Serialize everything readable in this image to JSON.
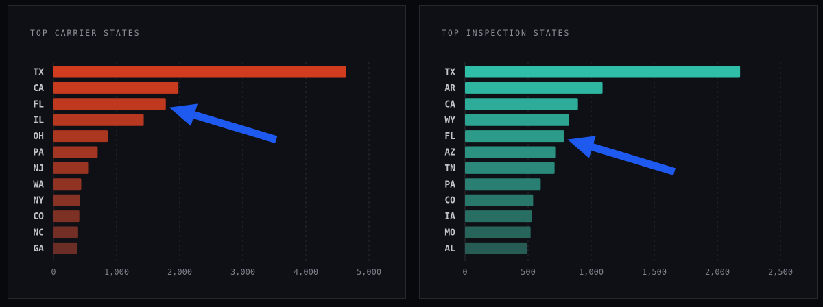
{
  "colors": {
    "carrier_top": "#d23c1e",
    "carrier_bottom": "#6a2e26",
    "inspection_top": "#2fbfa8",
    "inspection_bottom": "#265c53",
    "grid": "#2a2d34",
    "tick_text": "#7d818b",
    "label_text": "#c2c5cc",
    "arrow": "#1f5af0"
  },
  "chart_data": [
    {
      "type": "bar",
      "orientation": "horizontal",
      "title": "TOP CARRIER STATES",
      "categories": [
        "TX",
        "CA",
        "FL",
        "IL",
        "OH",
        "PA",
        "NJ",
        "WA",
        "NY",
        "CO",
        "NC",
        "GA"
      ],
      "values": [
        4640,
        1980,
        1780,
        1430,
        860,
        700,
        560,
        440,
        420,
        410,
        390,
        380
      ],
      "xlim": [
        0,
        5000
      ],
      "xticks": [
        0,
        1000,
        2000,
        3000,
        4000,
        5000
      ],
      "xtick_labels": [
        "0",
        "1,000",
        "2,000",
        "3,000",
        "4,000",
        "5,000"
      ],
      "grid": true,
      "annotation": {
        "type": "arrow",
        "points_to": "FL"
      }
    },
    {
      "type": "bar",
      "orientation": "horizontal",
      "title": "TOP INSPECTION STATES",
      "categories": [
        "TX",
        "AR",
        "CA",
        "WY",
        "FL",
        "AZ",
        "TN",
        "PA",
        "CO",
        "IA",
        "MO",
        "AL"
      ],
      "values": [
        2180,
        1090,
        895,
        825,
        785,
        715,
        710,
        600,
        540,
        530,
        520,
        495
      ],
      "xlim": [
        0,
        2500
      ],
      "xticks": [
        0,
        500,
        1000,
        1500,
        2000,
        2500
      ],
      "xtick_labels": [
        "0",
        "500",
        "1,000",
        "1,500",
        "2,000",
        "2,500"
      ],
      "grid": true,
      "annotation": {
        "type": "arrow",
        "points_to": "FL"
      }
    }
  ]
}
